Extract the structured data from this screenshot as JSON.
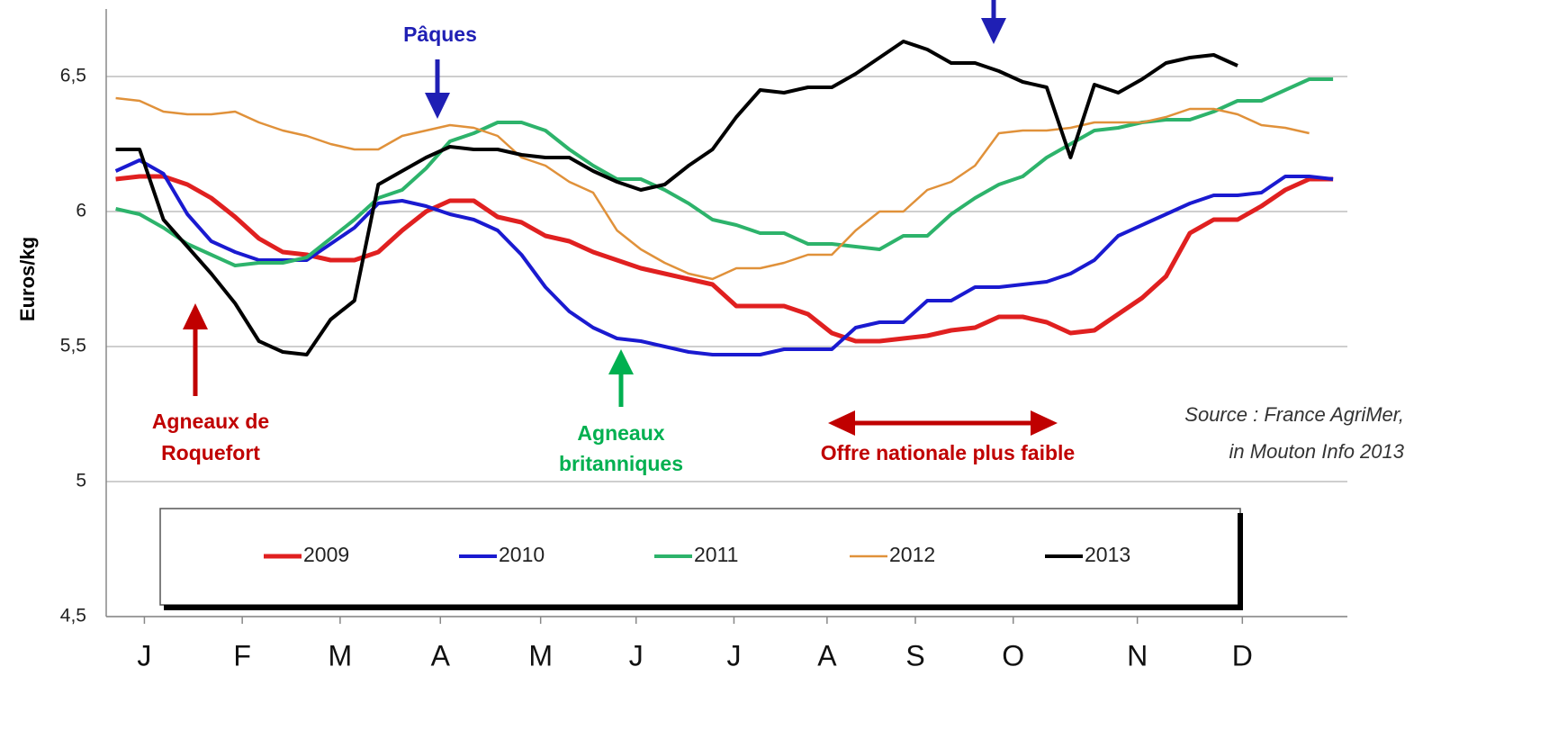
{
  "chart_data": {
    "type": "line",
    "y_label": "Euros/kg",
    "x": [
      1,
      2,
      3,
      4,
      5,
      6,
      7,
      8,
      9,
      10,
      11,
      12,
      13,
      14,
      15,
      16,
      17,
      18,
      19,
      20,
      21,
      22,
      23,
      24,
      25,
      26,
      27,
      28,
      29,
      30,
      31,
      32,
      33,
      34,
      35,
      36,
      37,
      38,
      39,
      40,
      41,
      42,
      43,
      44,
      45,
      46,
      47,
      48,
      49,
      50,
      51,
      52
    ],
    "xlim": [
      0.6,
      52.6
    ],
    "xticks": [
      {
        "value": 2.2,
        "label": "J"
      },
      {
        "value": 6.3,
        "label": "F"
      },
      {
        "value": 10.4,
        "label": "M"
      },
      {
        "value": 14.6,
        "label": "A"
      },
      {
        "value": 18.8,
        "label": "M"
      },
      {
        "value": 22.8,
        "label": "J"
      },
      {
        "value": 26.9,
        "label": "J"
      },
      {
        "value": 30.8,
        "label": "A"
      },
      {
        "value": 34.5,
        "label": "S"
      },
      {
        "value": 38.6,
        "label": "O"
      },
      {
        "value": 43.8,
        "label": "N"
      },
      {
        "value": 48.2,
        "label": "D"
      }
    ],
    "ylim": [
      4.5,
      6.75
    ],
    "yticks": [
      {
        "value": 4.5,
        "label": "4,5"
      },
      5,
      {
        "value": 5.5,
        "label": "5,5"
      },
      6,
      {
        "value": 6.5,
        "label": "6,5"
      }
    ],
    "grid": true,
    "series": [
      {
        "name": "2009",
        "color": "#e02020",
        "values": [
          6.12,
          6.13,
          6.13,
          6.1,
          6.05,
          5.98,
          5.9,
          5.85,
          5.84,
          5.82,
          5.82,
          5.85,
          5.93,
          6.0,
          6.04,
          6.04,
          5.98,
          5.96,
          5.91,
          5.89,
          5.85,
          5.82,
          5.79,
          5.77,
          5.75,
          5.73,
          5.65,
          5.65,
          5.65,
          5.62,
          5.55,
          5.52,
          5.52,
          5.53,
          5.54,
          5.56,
          5.57,
          5.61,
          5.61,
          5.59,
          5.55,
          5.56,
          5.62,
          5.68,
          5.76,
          5.92,
          5.97,
          5.97,
          6.02,
          6.08,
          6.12,
          6.12
        ]
      },
      {
        "name": "2010",
        "color": "#1a1ad0",
        "values": [
          6.15,
          6.19,
          6.14,
          5.99,
          5.89,
          5.85,
          5.82,
          5.82,
          5.82,
          5.88,
          5.94,
          6.03,
          6.04,
          6.02,
          5.99,
          5.97,
          5.93,
          5.84,
          5.72,
          5.63,
          5.57,
          5.53,
          5.52,
          5.5,
          5.48,
          5.47,
          5.47,
          5.47,
          5.49,
          5.49,
          5.49,
          5.57,
          5.59,
          5.59,
          5.67,
          5.67,
          5.72,
          5.72,
          5.73,
          5.74,
          5.77,
          5.82,
          5.91,
          5.95,
          5.99,
          6.03,
          6.06,
          6.06,
          6.07,
          6.13,
          6.13,
          6.12
        ]
      },
      {
        "name": "2011",
        "color": "#2db36b",
        "values": [
          6.01,
          5.99,
          5.94,
          5.88,
          5.84,
          5.8,
          5.81,
          5.81,
          5.83,
          5.9,
          5.97,
          6.05,
          6.08,
          6.16,
          6.26,
          6.29,
          6.33,
          6.33,
          6.3,
          6.23,
          6.17,
          6.12,
          6.12,
          6.08,
          6.03,
          5.97,
          5.95,
          5.92,
          5.92,
          5.88,
          5.88,
          5.87,
          5.86,
          5.91,
          5.91,
          5.99,
          6.05,
          6.1,
          6.13,
          6.2,
          6.25,
          6.3,
          6.31,
          6.33,
          6.34,
          6.34,
          6.37,
          6.41,
          6.41,
          6.45,
          6.49,
          6.49
        ]
      },
      {
        "name": "2012",
        "color": "#e0913a",
        "values": [
          6.42,
          6.41,
          6.37,
          6.36,
          6.36,
          6.37,
          6.33,
          6.3,
          6.28,
          6.25,
          6.23,
          6.23,
          6.28,
          6.3,
          6.32,
          6.31,
          6.28,
          6.2,
          6.17,
          6.11,
          6.07,
          5.93,
          5.86,
          5.81,
          5.77,
          5.75,
          5.79,
          5.79,
          5.81,
          5.84,
          5.84,
          5.93,
          6.0,
          6.0,
          6.08,
          6.11,
          6.17,
          6.29,
          6.3,
          6.3,
          6.31,
          6.33,
          6.33,
          6.33,
          6.35,
          6.38,
          6.38,
          6.36,
          6.32,
          6.31,
          6.29,
          null
        ]
      },
      {
        "name": "2013",
        "color": "#000000",
        "values": [
          6.23,
          6.23,
          5.97,
          5.87,
          5.77,
          5.66,
          5.52,
          5.48,
          5.47,
          5.6,
          5.67,
          6.1,
          6.15,
          6.2,
          6.24,
          6.23,
          6.23,
          6.21,
          6.2,
          6.2,
          6.15,
          6.11,
          6.08,
          6.1,
          6.17,
          6.23,
          6.35,
          6.45,
          6.44,
          6.46,
          6.46,
          6.51,
          6.57,
          6.63,
          6.6,
          6.55,
          6.55,
          6.52,
          6.48,
          6.46,
          6.2,
          6.47,
          6.44,
          6.49,
          6.55,
          6.57,
          6.58,
          6.54,
          null,
          null,
          null,
          null
        ]
      }
    ],
    "annotations": {
      "easter": "Pâques",
      "roquefort": [
        "Agneaux de",
        "Roquefort"
      ],
      "british": [
        "Agneaux",
        "britanniques"
      ],
      "supply": "Offre nationale plus faible",
      "source": [
        "Source : France AgriMer,",
        "in Mouton Info 2013"
      ]
    }
  }
}
